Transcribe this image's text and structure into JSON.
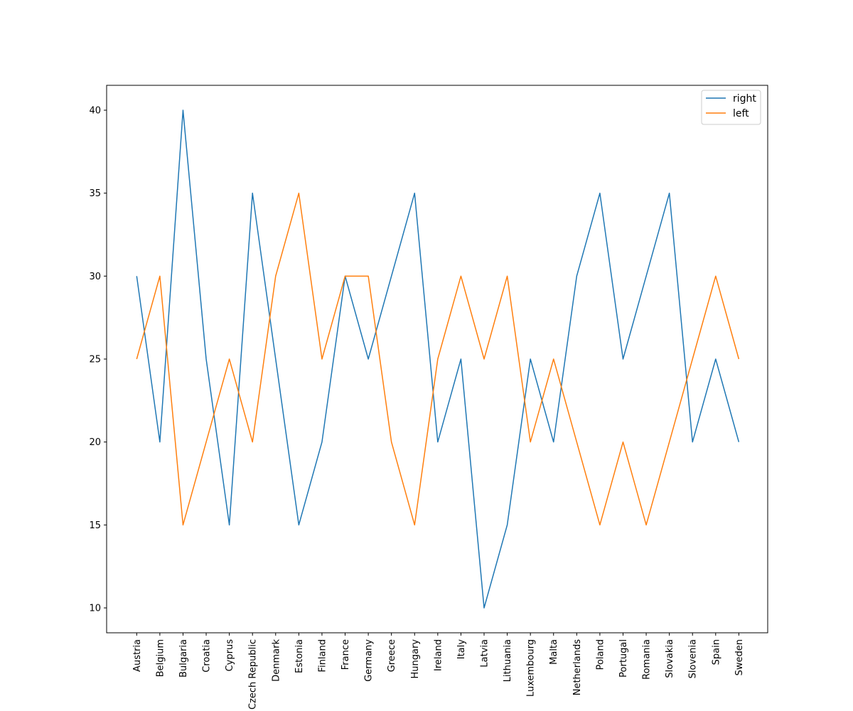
{
  "chart_data": {
    "type": "line",
    "title": "",
    "xlabel": "",
    "ylabel": "",
    "categories": [
      "Austria",
      "Belgium",
      "Bulgaria",
      "Croatia",
      "Cyprus",
      "Czech Republic",
      "Denmark",
      "Estonia",
      "Finland",
      "France",
      "Germany",
      "Greece",
      "Hungary",
      "Ireland",
      "Italy",
      "Latvia",
      "Lithuania",
      "Luxembourg",
      "Malta",
      "Netherlands",
      "Poland",
      "Portugal",
      "Romania",
      "Slovakia",
      "Slovenia",
      "Spain",
      "Sweden"
    ],
    "series": [
      {
        "name": "right",
        "color": "#1f77b4",
        "values": [
          30,
          20,
          40,
          25,
          15,
          35,
          25,
          15,
          20,
          30,
          25,
          30,
          35,
          20,
          25,
          10,
          15,
          25,
          20,
          30,
          35,
          25,
          30,
          35,
          20,
          25,
          20
        ]
      },
      {
        "name": "left",
        "color": "#ff7f0e",
        "values": [
          25,
          30,
          15,
          20,
          25,
          20,
          30,
          35,
          25,
          30,
          30,
          20,
          15,
          25,
          30,
          25,
          30,
          20,
          25,
          20,
          15,
          20,
          15,
          20,
          25,
          30,
          25
        ]
      }
    ],
    "ylim": [
      8.5,
      41.5
    ],
    "yticks": [
      10,
      15,
      20,
      25,
      30,
      35,
      40
    ],
    "grid": false,
    "legend_position": "top-right"
  }
}
